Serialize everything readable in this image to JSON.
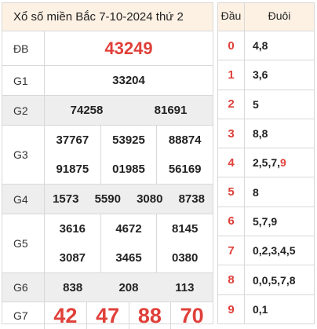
{
  "title": "Xổ số miền Bắc 7-10-2024 thứ 2",
  "prizes": {
    "db": {
      "label": "ĐB",
      "values": [
        "43249"
      ]
    },
    "g1": {
      "label": "G1",
      "values": [
        "33204"
      ]
    },
    "g2": {
      "label": "G2",
      "values": [
        "74258",
        "81691"
      ]
    },
    "g3": {
      "label": "G3",
      "values": [
        "37767",
        "53925",
        "88874",
        "91875",
        "01985",
        "56169"
      ]
    },
    "g4": {
      "label": "G4",
      "values": [
        "1573",
        "5590",
        "3080",
        "8738"
      ]
    },
    "g5": {
      "label": "G5",
      "values": [
        "3616",
        "4672",
        "8145",
        "3087",
        "3465",
        "0380"
      ]
    },
    "g6": {
      "label": "G6",
      "values": [
        "838",
        "208",
        "113"
      ]
    },
    "g7": {
      "label": "G7",
      "values": [
        "42",
        "47",
        "88",
        "70"
      ]
    }
  },
  "loto": {
    "head_label": "Đầu",
    "tail_label": "Đuôi",
    "rows": [
      {
        "head": "0",
        "tails": "4,8"
      },
      {
        "head": "1",
        "tails": "3,6"
      },
      {
        "head": "2",
        "tails": "5"
      },
      {
        "head": "3",
        "tails": "8,8"
      },
      {
        "head": "4",
        "tails": "2,5,7,",
        "tails_highlight": "9"
      },
      {
        "head": "5",
        "tails": "8"
      },
      {
        "head": "6",
        "tails": "5,7,9"
      },
      {
        "head": "7",
        "tails": "0,2,3,4,5"
      },
      {
        "head": "8",
        "tails": "0,0,5,7,8"
      },
      {
        "head": "9",
        "tails": "0,1"
      }
    ]
  },
  "colors": {
    "accent_red": "#e0403a",
    "header_bg": "#fdf1e4",
    "alt_row_bg": "#eeeeee"
  }
}
